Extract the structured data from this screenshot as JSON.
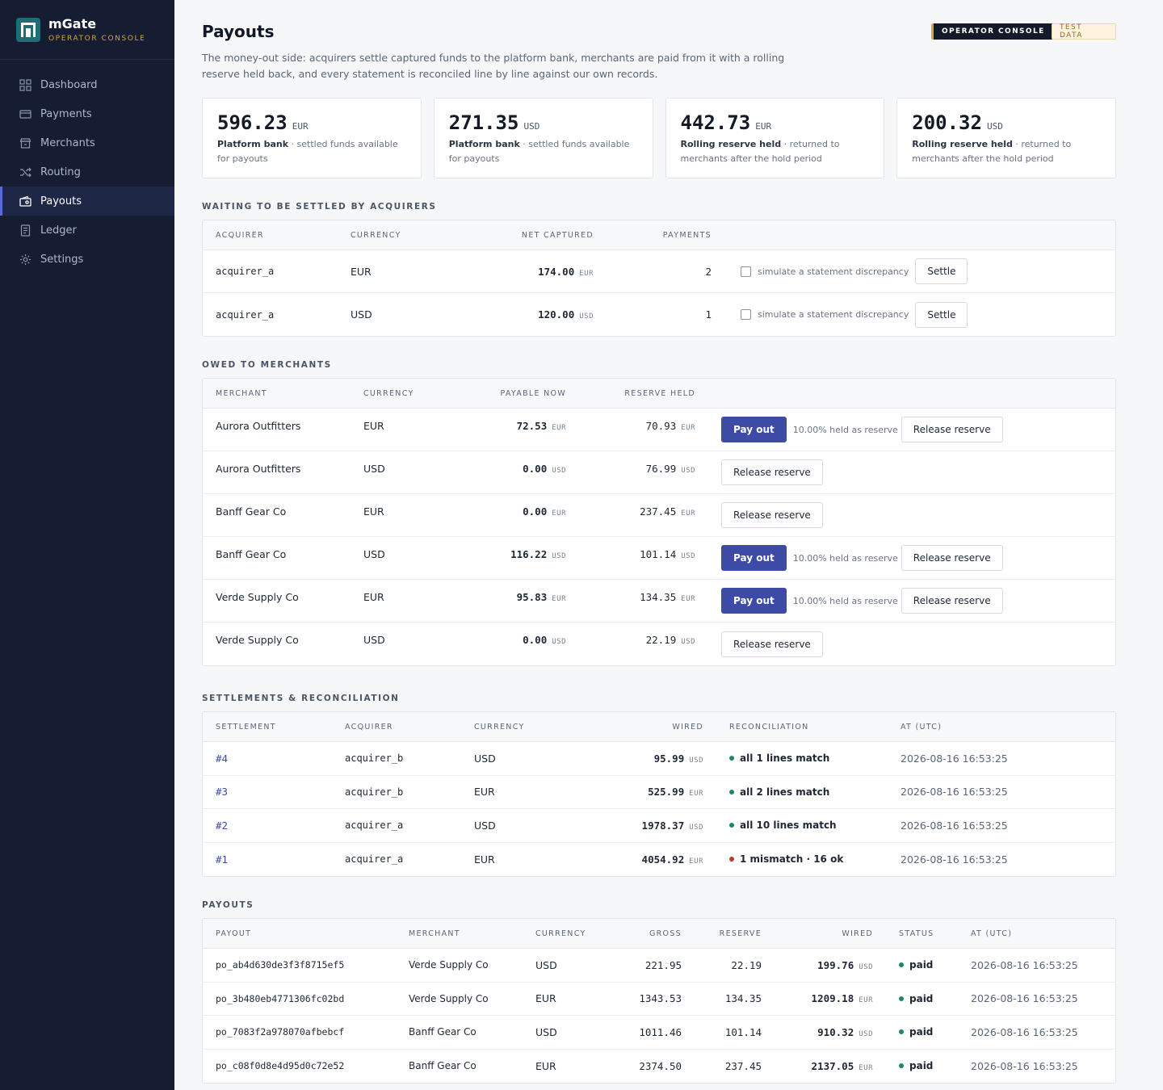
{
  "brand": {
    "name": "mGate",
    "subtitle": "OPERATOR CONSOLE"
  },
  "nav": [
    {
      "label": "Dashboard",
      "icon": "grid-icon"
    },
    {
      "label": "Payments",
      "icon": "card-icon"
    },
    {
      "label": "Merchants",
      "icon": "store-icon"
    },
    {
      "label": "Routing",
      "icon": "shuffle-icon"
    },
    {
      "label": "Payouts",
      "icon": "wallet-icon",
      "active": true
    },
    {
      "label": "Ledger",
      "icon": "book-icon"
    },
    {
      "label": "Settings",
      "icon": "gear-icon"
    }
  ],
  "header": {
    "title": "Payouts",
    "badge_console": "OPERATOR CONSOLE",
    "badge_test": "TEST DATA",
    "description": "The money-out side: acquirers settle captured funds to the platform bank, merchants are paid from it with a rolling reserve held back, and every statement is reconciled line by line against our own records."
  },
  "cards": [
    {
      "value": "596.23",
      "currency": "EUR",
      "label": "Platform bank",
      "text": " · settled funds available for payouts"
    },
    {
      "value": "271.35",
      "currency": "USD",
      "label": "Platform bank",
      "text": " · settled funds available for payouts"
    },
    {
      "value": "442.73",
      "currency": "EUR",
      "label": "Rolling reserve held",
      "text": " · returned to merchants after the hold period"
    },
    {
      "value": "200.32",
      "currency": "USD",
      "label": "Rolling reserve held",
      "text": " · returned to merchants after the hold period"
    }
  ],
  "waiting": {
    "title": "WAITING TO BE SETTLED BY ACQUIRERS",
    "headers": [
      "ACQUIRER",
      "CURRENCY",
      "NET CAPTURED",
      "PAYMENTS"
    ],
    "checkbox_label": "simulate a statement discrepancy",
    "settle_label": "Settle",
    "rows": [
      {
        "acquirer": "acquirer_a",
        "currency": "EUR",
        "net": "174.00",
        "net_cur": "EUR",
        "payments": "2"
      },
      {
        "acquirer": "acquirer_a",
        "currency": "USD",
        "net": "120.00",
        "net_cur": "USD",
        "payments": "1"
      }
    ]
  },
  "owed": {
    "title": "OWED TO MERCHANTS",
    "headers": [
      "MERCHANT",
      "CURRENCY",
      "PAYABLE NOW",
      "RESERVE HELD"
    ],
    "pay_label": "Pay out",
    "hint": "10.00% held as reserve",
    "release_label": "Release reserve",
    "rows": [
      {
        "merchant": "Aurora Outfitters",
        "currency": "EUR",
        "payable": "72.53",
        "reserve": "70.93",
        "payable_flag": true
      },
      {
        "merchant": "Aurora Outfitters",
        "currency": "USD",
        "payable": "0.00",
        "reserve": "76.99",
        "payable_flag": false
      },
      {
        "merchant": "Banff Gear Co",
        "currency": "EUR",
        "payable": "0.00",
        "reserve": "237.45",
        "payable_flag": false
      },
      {
        "merchant": "Banff Gear Co",
        "currency": "USD",
        "payable": "116.22",
        "reserve": "101.14",
        "payable_flag": true
      },
      {
        "merchant": "Verde Supply Co",
        "currency": "EUR",
        "payable": "95.83",
        "reserve": "134.35",
        "payable_flag": true
      },
      {
        "merchant": "Verde Supply Co",
        "currency": "USD",
        "payable": "0.00",
        "reserve": "22.19",
        "payable_flag": false
      }
    ]
  },
  "settlements": {
    "title": "SETTLEMENTS & RECONCILIATION",
    "headers": [
      "SETTLEMENT",
      "ACQUIRER",
      "CURRENCY",
      "WIRED",
      "RECONCILIATION",
      "AT (UTC)"
    ],
    "rows": [
      {
        "id": "#4",
        "acquirer": "acquirer_b",
        "currency": "USD",
        "wired": "95.99",
        "recon": "all 1 lines match",
        "status": "green",
        "at": "2026-08-16 16:53:25"
      },
      {
        "id": "#3",
        "acquirer": "acquirer_b",
        "currency": "EUR",
        "wired": "525.99",
        "recon": "all 2 lines match",
        "status": "green",
        "at": "2026-08-16 16:53:25"
      },
      {
        "id": "#2",
        "acquirer": "acquirer_a",
        "currency": "USD",
        "wired": "1978.37",
        "recon": "all 10 lines match",
        "status": "green",
        "at": "2026-08-16 16:53:25"
      },
      {
        "id": "#1",
        "acquirer": "acquirer_a",
        "currency": "EUR",
        "wired": "4054.92",
        "recon": "1 mismatch · 16 ok",
        "status": "red",
        "at": "2026-08-16 16:53:25"
      }
    ]
  },
  "payouts": {
    "title": "PAYOUTS",
    "headers": [
      "PAYOUT",
      "MERCHANT",
      "CURRENCY",
      "GROSS",
      "RESERVE",
      "WIRED",
      "STATUS",
      "AT (UTC)"
    ],
    "rows": [
      {
        "id": "po_ab4d630de3f3f8715ef5",
        "merchant": "Verde Supply Co",
        "currency": "USD",
        "gross": "221.95",
        "reserve": "22.19",
        "wired": "199.76",
        "status": "paid",
        "at": "2026-08-16 16:53:25"
      },
      {
        "id": "po_3b480eb4771306fc02bd",
        "merchant": "Verde Supply Co",
        "currency": "EUR",
        "gross": "1343.53",
        "reserve": "134.35",
        "wired": "1209.18",
        "status": "paid",
        "at": "2026-08-16 16:53:25"
      },
      {
        "id": "po_7083f2a978070afbebcf",
        "merchant": "Banff Gear Co",
        "currency": "USD",
        "gross": "1011.46",
        "reserve": "101.14",
        "wired": "910.32",
        "status": "paid",
        "at": "2026-08-16 16:53:25"
      },
      {
        "id": "po_c08f0d8e4d95d0c72e52",
        "merchant": "Banff Gear Co",
        "currency": "EUR",
        "gross": "2374.50",
        "reserve": "237.45",
        "wired": "2137.05",
        "status": "paid",
        "at": "2026-08-16 16:53:25"
      }
    ]
  }
}
